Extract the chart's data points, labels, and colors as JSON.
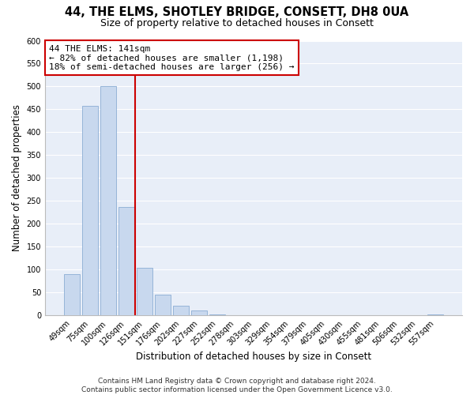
{
  "title": "44, THE ELMS, SHOTLEY BRIDGE, CONSETT, DH8 0UA",
  "subtitle": "Size of property relative to detached houses in Consett",
  "xlabel": "Distribution of detached houses by size in Consett",
  "ylabel": "Number of detached properties",
  "bar_labels": [
    "49sqm",
    "75sqm",
    "100sqm",
    "126sqm",
    "151sqm",
    "176sqm",
    "202sqm",
    "227sqm",
    "252sqm",
    "278sqm",
    "303sqm",
    "329sqm",
    "354sqm",
    "379sqm",
    "405sqm",
    "430sqm",
    "455sqm",
    "481sqm",
    "506sqm",
    "532sqm",
    "557sqm"
  ],
  "bar_values": [
    90,
    458,
    500,
    236,
    104,
    45,
    20,
    11,
    2,
    0,
    0,
    0,
    0,
    0,
    0,
    0,
    0,
    0,
    0,
    0,
    2
  ],
  "bar_color": "#c8d8ee",
  "bar_edge_color": "#8badd4",
  "vline_color": "#cc0000",
  "vline_bar_index": 3,
  "annotation_line1": "44 THE ELMS: 141sqm",
  "annotation_line2": "← 82% of detached houses are smaller (1,198)",
  "annotation_line3": "18% of semi-detached houses are larger (256) →",
  "annotation_box_edge_color": "#cc0000",
  "annotation_box_fill": "#ffffff",
  "ylim": [
    0,
    600
  ],
  "yticks": [
    0,
    50,
    100,
    150,
    200,
    250,
    300,
    350,
    400,
    450,
    500,
    550,
    600
  ],
  "footer_line1": "Contains HM Land Registry data © Crown copyright and database right 2024.",
  "footer_line2": "Contains public sector information licensed under the Open Government Licence v3.0.",
  "background_color": "#ffffff",
  "plot_background_color": "#e8eef8",
  "grid_color": "#ffffff",
  "title_fontsize": 10.5,
  "subtitle_fontsize": 9,
  "axis_label_fontsize": 8.5,
  "tick_fontsize": 7,
  "footer_fontsize": 6.5,
  "annotation_fontsize": 8
}
